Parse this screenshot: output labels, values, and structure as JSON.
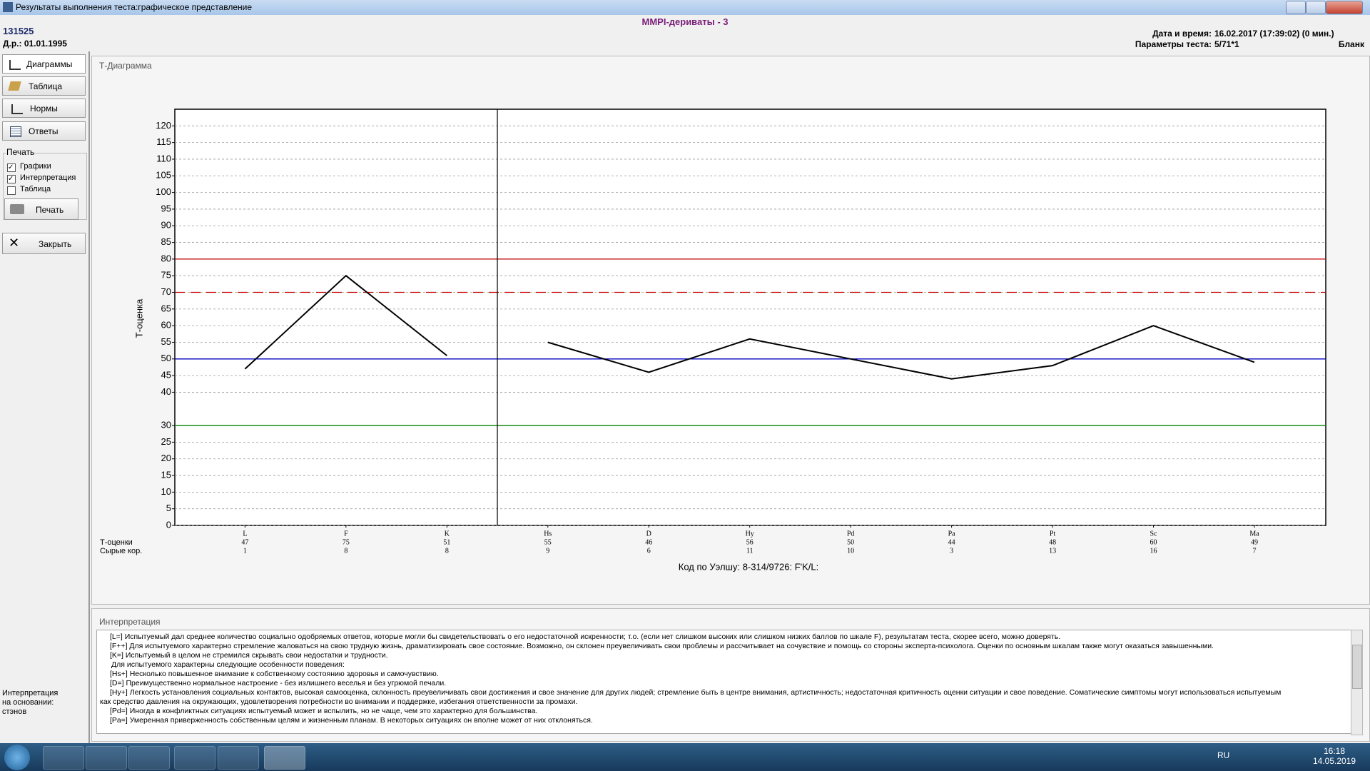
{
  "window": {
    "title": "Результаты выполнения теста:графическое представление"
  },
  "header": {
    "title": "MMPI-дериваты - 3",
    "id": "131525",
    "birth": "Д.р.: 01.01.1995",
    "date_label": "Дата и время:",
    "date_value": "16.02.2017 (17:39:02) (0 мин.)",
    "params_label": "Параметры теста:",
    "params_value": "5/71*1",
    "form": "Бланк"
  },
  "sidebar": {
    "buttons": [
      "Диаграммы",
      "Таблица",
      "Нормы",
      "Ответы"
    ],
    "print_group": "Печать",
    "checkboxes": [
      {
        "label": "Графики",
        "checked": true
      },
      {
        "label": "Интерпретация",
        "checked": true
      },
      {
        "label": "Таблица",
        "checked": false
      }
    ],
    "print_button": "Печать",
    "close_button": "Закрыть",
    "basis": [
      "Интерпретация",
      "на основании:",
      "стэнов"
    ]
  },
  "chart_panel": {
    "title": "Т-Диаграмма"
  },
  "chart_data": {
    "type": "line",
    "ylabel": "Т-оценка",
    "categories": [
      "L",
      "F",
      "K",
      "Hs",
      "D",
      "Hy",
      "Pd",
      "Pa",
      "Pt",
      "Sc",
      "Ma"
    ],
    "series": [
      {
        "color": "#000000",
        "values": [
          47,
          75,
          51,
          null,
          null,
          null,
          null,
          null,
          null,
          null,
          null
        ]
      },
      {
        "color": "#000000",
        "values": [
          null,
          null,
          null,
          55,
          46,
          56,
          50,
          44,
          48,
          60,
          49
        ]
      }
    ],
    "ylim": [
      0,
      125
    ],
    "yticks": [
      0,
      5,
      10,
      15,
      20,
      25,
      30,
      40,
      45,
      50,
      55,
      60,
      65,
      70,
      75,
      80,
      85,
      90,
      95,
      100,
      105,
      110,
      115,
      120
    ],
    "grid": true,
    "reference_lines": [
      {
        "value": 80,
        "color": "#c00000",
        "style": "solid"
      },
      {
        "value": 70,
        "color": "#c00000",
        "style": "dashed"
      },
      {
        "value": 50,
        "color": "#0000c0",
        "style": "solid"
      },
      {
        "value": 30,
        "color": "#008000",
        "style": "solid"
      }
    ],
    "t_row_label": "Т-оценки",
    "raw_row_label": "Сырые кор.",
    "raw_values": [
      1,
      8,
      8,
      9,
      6,
      11,
      10,
      3,
      13,
      16,
      7
    ],
    "footer": "Код по Уэлшу: 8-314/9726: F'K/L:"
  },
  "interpretation": {
    "title": "Интерпретация",
    "lines": [
      "[L=]  Испытуемый дал среднее количество социально одобряемых ответов, которые могли бы свидетельствовать о его недостаточной искренности; т.о. (если нет слишком высоких или слишком низких баллов по шкале F), результатам теста, скорее всего, можно доверять.",
      "[F++]  Для испытуемого характерно стремление жаловаться на свою трудную жизнь, драматизировать свое состояние. Возможно, он склонен преувеличивать свои проблемы и рассчитывает на сочувствие и помощь со стороны эксперта-психолога. Оценки по основным шкалам также могут оказаться завышенными.",
      "[K=]  Испытуемый в целом не стремился скрывать свои недостатки и трудности.",
      "Для испытуемого характерны следующие особенности поведения:",
      "[Hs+]  Несколько повышенное внимание к собственному состоянию здоровья и самочувствию.",
      "[D=]  Преимущественно нормальное настроение - без излишнего веселья и без угрюмой печали.",
      "[Hy+]  Легкость установления социальных контактов, высокая самооценка, склонность преувеличивать свои достижения и свое значение для других людей; стремление быть в центре внимания, артистичность; недостаточная критичность оценки ситуации и свое поведение. Соматические симптомы могут использоваться испытуемым",
      "как средство давления на окружающих, удовлетворения потребности во внимании и поддержке, избегания ответственности за промахи.",
      "[Pd=]  Иногда в конфликтных ситуациях испытуемый может и вспылить, но не чаще, чем это характерно для большинства.",
      "[Pa=]  Умеренная приверженность собственным целям и жизненным планам. В некоторых ситуациях он вполне может от них отклоняться."
    ]
  },
  "taskbar": {
    "language": "RU",
    "time": "16:18",
    "date": "14.05.2019"
  }
}
